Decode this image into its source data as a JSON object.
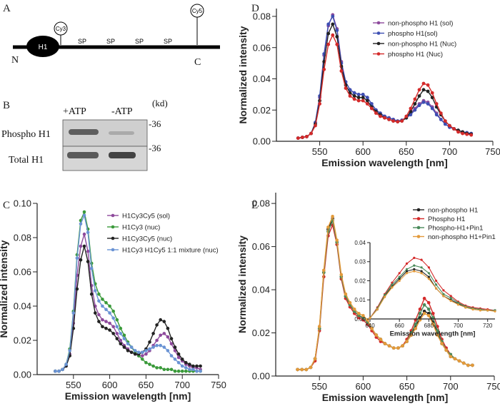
{
  "panels": {
    "A": {
      "letter": "A",
      "domain_label": "H1",
      "sp_labels": [
        "SP",
        "SP",
        "SP",
        "SP"
      ],
      "cy3_label": "Cy3",
      "cy5_label": "Cy5",
      "n_label": "N",
      "c_label": "C"
    },
    "B": {
      "letter": "B",
      "lane_labels": [
        "+ATP",
        "-ATP"
      ],
      "unit_label": "(kd)",
      "row_labels": [
        "Phospho H1",
        "Total H1"
      ],
      "marker_labels": [
        "-36",
        "-36"
      ]
    },
    "C": {
      "letter": "C"
    },
    "D": {
      "letter": "D"
    },
    "E": {
      "letter": "E"
    }
  },
  "chart_data": [
    {
      "id": "D",
      "type": "line",
      "xlabel": "Emission wavelength [nm]",
      "ylabel": "Normalized intensity",
      "xlim": [
        500,
        750
      ],
      "ylim": [
        0,
        0.085
      ],
      "xticks": [
        550,
        600,
        650,
        700,
        750
      ],
      "yticks": [
        0.0,
        0.02,
        0.04,
        0.06,
        0.08
      ],
      "ytick_labels": [
        "0.00",
        "0.02",
        "0.04",
        "0.06",
        "0.08"
      ],
      "legend_position": "top-right",
      "x": [
        525,
        530,
        535,
        540,
        545,
        550,
        555,
        560,
        565,
        570,
        575,
        580,
        585,
        590,
        595,
        600,
        605,
        610,
        615,
        620,
        625,
        630,
        635,
        640,
        645,
        650,
        655,
        660,
        665,
        670,
        675,
        680,
        685,
        690,
        695,
        700,
        705,
        710,
        715,
        720,
        725
      ],
      "series": [
        {
          "name": "non-phospho H1 (sol)",
          "color": "#8e4a9c",
          "values": [
            0.002,
            0.0025,
            0.003,
            0.005,
            0.012,
            0.028,
            0.055,
            0.074,
            0.081,
            0.072,
            0.051,
            0.038,
            0.033,
            0.031,
            0.03,
            0.03,
            0.028,
            0.024,
            0.02,
            0.018,
            0.016,
            0.015,
            0.014,
            0.013,
            0.0135,
            0.015,
            0.018,
            0.021,
            0.024,
            0.026,
            0.025,
            0.022,
            0.018,
            0.014,
            0.011,
            0.009,
            0.008,
            0.007,
            0.006,
            0.0055,
            0.005
          ]
        },
        {
          "name": "phospho H1(sol)",
          "color": "#3d4fb3",
          "values": [
            0.002,
            0.0025,
            0.003,
            0.005,
            0.012,
            0.029,
            0.056,
            0.075,
            0.08,
            0.071,
            0.05,
            0.038,
            0.033,
            0.031,
            0.03,
            0.03,
            0.028,
            0.024,
            0.02,
            0.018,
            0.016,
            0.015,
            0.014,
            0.013,
            0.0135,
            0.015,
            0.017,
            0.02,
            0.023,
            0.025,
            0.024,
            0.021,
            0.017,
            0.014,
            0.011,
            0.009,
            0.008,
            0.007,
            0.006,
            0.0055,
            0.005
          ]
        },
        {
          "name": "non-phospho H1 (Nuc)",
          "color": "#222222",
          "values": [
            0.002,
            0.0025,
            0.003,
            0.005,
            0.011,
            0.026,
            0.051,
            0.069,
            0.075,
            0.067,
            0.048,
            0.036,
            0.031,
            0.029,
            0.028,
            0.028,
            0.026,
            0.022,
            0.019,
            0.017,
            0.015,
            0.014,
            0.013,
            0.0125,
            0.013,
            0.015,
            0.019,
            0.024,
            0.029,
            0.033,
            0.032,
            0.028,
            0.022,
            0.017,
            0.013,
            0.01,
            0.008,
            0.007,
            0.006,
            0.005,
            0.0045
          ]
        },
        {
          "name": "phospho H1 (Nuc)",
          "color": "#d42a2a",
          "values": [
            0.002,
            0.0025,
            0.003,
            0.005,
            0.01,
            0.024,
            0.046,
            0.062,
            0.068,
            0.062,
            0.045,
            0.034,
            0.029,
            0.027,
            0.026,
            0.026,
            0.024,
            0.021,
            0.018,
            0.016,
            0.015,
            0.014,
            0.013,
            0.0125,
            0.013,
            0.016,
            0.021,
            0.027,
            0.033,
            0.037,
            0.036,
            0.031,
            0.024,
            0.018,
            0.013,
            0.01,
            0.008,
            0.006,
            0.005,
            0.0045,
            0.004
          ]
        }
      ]
    },
    {
      "id": "C",
      "type": "line",
      "xlabel": "Emission wavelength [nm]",
      "ylabel": "Normalized intensity",
      "xlim": [
        500,
        750
      ],
      "ylim": [
        0,
        0.1
      ],
      "xticks": [
        550,
        600,
        650,
        700,
        750
      ],
      "yticks": [
        0.0,
        0.02,
        0.04,
        0.06,
        0.08,
        0.1
      ],
      "ytick_labels": [
        "0.00",
        "0.02",
        "0.04",
        "0.06",
        "0.08",
        "0.10"
      ],
      "legend_position": "top-right",
      "x": [
        525,
        530,
        535,
        540,
        545,
        550,
        555,
        560,
        565,
        570,
        575,
        580,
        585,
        590,
        595,
        600,
        605,
        610,
        615,
        620,
        625,
        630,
        635,
        640,
        645,
        650,
        655,
        660,
        665,
        670,
        675,
        680,
        685,
        690,
        695,
        700,
        705,
        710,
        715,
        720,
        725
      ],
      "series": [
        {
          "name": "H1Cy3Cy5 (sol)",
          "color": "#8e4a9c",
          "values": [
            0.002,
            0.002,
            0.003,
            0.005,
            0.012,
            0.03,
            0.058,
            0.075,
            0.082,
            0.072,
            0.052,
            0.04,
            0.035,
            0.032,
            0.031,
            0.03,
            0.028,
            0.024,
            0.02,
            0.017,
            0.015,
            0.013,
            0.012,
            0.011,
            0.011,
            0.012,
            0.014,
            0.017,
            0.02,
            0.023,
            0.024,
            0.022,
            0.018,
            0.014,
            0.01,
            0.008,
            0.006,
            0.005,
            0.004,
            0.004,
            0.003
          ]
        },
        {
          "name": "H1Cy3 (nuc)",
          "color": "#3a9a3a",
          "values": [
            0.002,
            0.002,
            0.003,
            0.006,
            0.015,
            0.037,
            0.07,
            0.09,
            0.095,
            0.085,
            0.065,
            0.053,
            0.047,
            0.044,
            0.042,
            0.04,
            0.037,
            0.032,
            0.027,
            0.023,
            0.019,
            0.016,
            0.013,
            0.011,
            0.009,
            0.007,
            0.006,
            0.005,
            0.004,
            0.004,
            0.003,
            0.003,
            0.003,
            0.002,
            0.002,
            0.002,
            0.002,
            0.002,
            0.002,
            0.002,
            0.002
          ]
        },
        {
          "name": "H1Cy3Cy5 (nuc)",
          "color": "#222222",
          "values": [
            0.002,
            0.002,
            0.003,
            0.005,
            0.011,
            0.027,
            0.05,
            0.067,
            0.075,
            0.066,
            0.047,
            0.036,
            0.031,
            0.028,
            0.027,
            0.026,
            0.024,
            0.021,
            0.018,
            0.016,
            0.014,
            0.013,
            0.012,
            0.012,
            0.013,
            0.015,
            0.019,
            0.024,
            0.029,
            0.032,
            0.031,
            0.027,
            0.021,
            0.016,
            0.012,
            0.009,
            0.007,
            0.006,
            0.005,
            0.005,
            0.005
          ]
        },
        {
          "name": "H1Cy3 H1Cy5 1:1 mixture (nuc)",
          "color": "#6a93d4",
          "values": [
            0.002,
            0.002,
            0.003,
            0.006,
            0.014,
            0.036,
            0.068,
            0.088,
            0.093,
            0.083,
            0.062,
            0.049,
            0.043,
            0.04,
            0.038,
            0.036,
            0.033,
            0.028,
            0.024,
            0.021,
            0.018,
            0.016,
            0.014,
            0.013,
            0.013,
            0.014,
            0.015,
            0.016,
            0.017,
            0.017,
            0.016,
            0.014,
            0.011,
            0.009,
            0.007,
            0.005,
            0.004,
            0.003,
            0.003,
            0.002,
            0.002
          ]
        }
      ]
    },
    {
      "id": "E",
      "type": "line",
      "xlabel": "Emission wavelength [nm]",
      "ylabel": "Normalized intensity",
      "xlim": [
        500,
        750
      ],
      "ylim": [
        0,
        0.085
      ],
      "xticks": [
        550,
        600,
        650,
        700,
        750
      ],
      "yticks": [
        0.0,
        0.02,
        0.04,
        0.06,
        0.08
      ],
      "ytick_labels": [
        "0.00",
        "0.02",
        "0.04",
        "0.06",
        "0.08"
      ],
      "legend_position": "top-right",
      "x": [
        525,
        530,
        535,
        540,
        545,
        550,
        555,
        560,
        565,
        570,
        575,
        580,
        585,
        590,
        595,
        600,
        605,
        610,
        615,
        620,
        625,
        630,
        635,
        640,
        645,
        650,
        655,
        660,
        665,
        670,
        675,
        680,
        685,
        690,
        695,
        700,
        705,
        710,
        715,
        720,
        725
      ],
      "series": [
        {
          "name": "non-phospho H1",
          "color": "#222222",
          "values": [
            0.003,
            0.003,
            0.003,
            0.004,
            0.008,
            0.022,
            0.048,
            0.068,
            0.073,
            0.062,
            0.046,
            0.037,
            0.033,
            0.03,
            0.028,
            0.027,
            0.025,
            0.022,
            0.019,
            0.017,
            0.015,
            0.014,
            0.013,
            0.013,
            0.014,
            0.016,
            0.019,
            0.023,
            0.027,
            0.03,
            0.029,
            0.025,
            0.02,
            0.015,
            0.012,
            0.009,
            0.008,
            0.007,
            0.006,
            0.005,
            0.005
          ]
        },
        {
          "name": "Phospho H1",
          "color": "#d42a2a",
          "values": [
            0.003,
            0.003,
            0.003,
            0.004,
            0.007,
            0.021,
            0.046,
            0.065,
            0.07,
            0.061,
            0.045,
            0.036,
            0.032,
            0.029,
            0.027,
            0.026,
            0.024,
            0.021,
            0.018,
            0.016,
            0.015,
            0.014,
            0.013,
            0.013,
            0.014,
            0.017,
            0.021,
            0.026,
            0.031,
            0.036,
            0.034,
            0.029,
            0.023,
            0.017,
            0.013,
            0.01,
            0.008,
            0.007,
            0.006,
            0.005,
            0.005
          ]
        },
        {
          "name": "Phospho-H1+Pin1",
          "color": "#4a8a5a",
          "values": [
            0.003,
            0.003,
            0.003,
            0.004,
            0.008,
            0.022,
            0.048,
            0.067,
            0.072,
            0.062,
            0.046,
            0.037,
            0.033,
            0.03,
            0.028,
            0.027,
            0.025,
            0.022,
            0.019,
            0.017,
            0.015,
            0.014,
            0.013,
            0.013,
            0.014,
            0.016,
            0.02,
            0.024,
            0.029,
            0.033,
            0.031,
            0.027,
            0.021,
            0.016,
            0.012,
            0.01,
            0.008,
            0.007,
            0.006,
            0.005,
            0.005
          ]
        },
        {
          "name": "non-phospho H1+Pin1",
          "color": "#e39a3a",
          "values": [
            0.003,
            0.003,
            0.003,
            0.004,
            0.008,
            0.023,
            0.049,
            0.069,
            0.074,
            0.063,
            0.047,
            0.038,
            0.034,
            0.031,
            0.029,
            0.028,
            0.026,
            0.022,
            0.019,
            0.017,
            0.015,
            0.014,
            0.013,
            0.013,
            0.014,
            0.016,
            0.019,
            0.022,
            0.026,
            0.029,
            0.028,
            0.024,
            0.019,
            0.015,
            0.012,
            0.009,
            0.008,
            0.007,
            0.006,
            0.005,
            0.005
          ]
        }
      ]
    },
    {
      "id": "E-inset",
      "type": "line",
      "xlabel": "Emission wavelength [nm]",
      "ylabel": "",
      "xlim": [
        640,
        725
      ],
      "ylim": [
        0,
        0.04
      ],
      "xticks": [
        640,
        660,
        680,
        700,
        720
      ],
      "yticks": [
        0.0,
        0.01,
        0.02,
        0.03,
        0.04
      ],
      "ytick_labels": [
        "0.00",
        "0.01",
        "0.02",
        "0.03",
        "0.04"
      ],
      "x": [
        640,
        645,
        650,
        655,
        660,
        665,
        670,
        675,
        680,
        685,
        690,
        695,
        700,
        705,
        710,
        715,
        720,
        725
      ],
      "series": [
        {
          "name": "non-phospho H1",
          "color": "#222222",
          "values": [
            0.0005,
            0.005,
            0.012,
            0.017,
            0.021,
            0.025,
            0.026,
            0.025,
            0.022,
            0.016,
            0.012,
            0.01,
            0.008,
            0.006,
            0.0055,
            0.005,
            0.0045,
            0.0045
          ]
        },
        {
          "name": "Phospho H1",
          "color": "#d42a2a",
          "values": [
            0.0005,
            0.006,
            0.013,
            0.019,
            0.024,
            0.029,
            0.032,
            0.031,
            0.027,
            0.02,
            0.015,
            0.012,
            0.009,
            0.007,
            0.006,
            0.0055,
            0.005,
            0.0045
          ]
        },
        {
          "name": "Phospho-H1+Pin1",
          "color": "#4a8a5a",
          "values": [
            0.0005,
            0.0055,
            0.0125,
            0.018,
            0.022,
            0.026,
            0.028,
            0.027,
            0.024,
            0.018,
            0.013,
            0.011,
            0.0085,
            0.0065,
            0.0055,
            0.005,
            0.0045,
            0.0045
          ]
        },
        {
          "name": "non-phospho H1+Pin1",
          "color": "#e39a3a",
          "values": [
            0.0005,
            0.005,
            0.0115,
            0.0165,
            0.02,
            0.024,
            0.025,
            0.024,
            0.021,
            0.016,
            0.012,
            0.0095,
            0.0075,
            0.006,
            0.005,
            0.0045,
            0.0045,
            0.004
          ]
        }
      ]
    }
  ]
}
